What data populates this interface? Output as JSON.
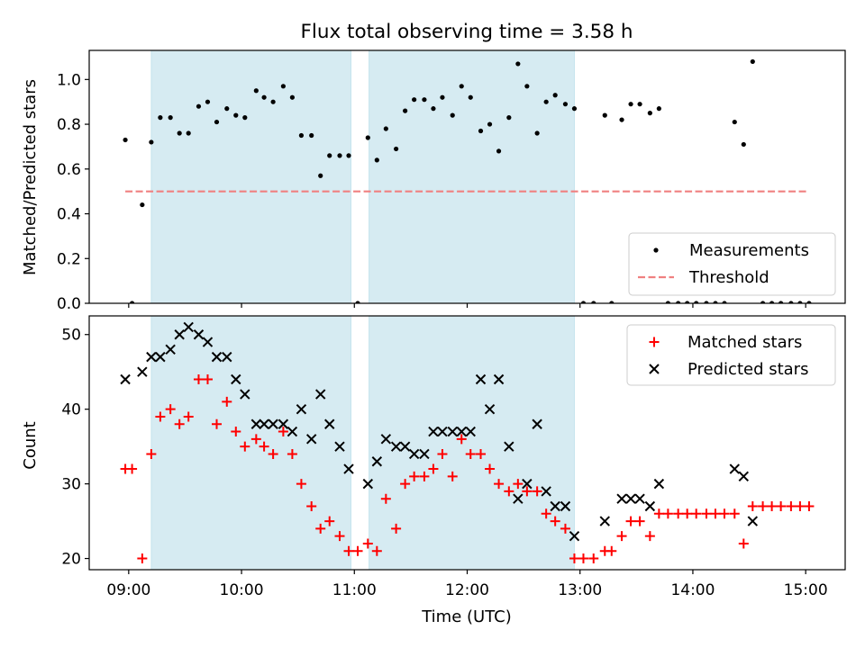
{
  "title": "Flux total observing time = 3.58 h",
  "x_axis": {
    "label": "Time (UTC)",
    "range": [
      8.65,
      15.35
    ],
    "ticks": [
      {
        "value": 9,
        "label": "09:00"
      },
      {
        "value": 10,
        "label": "10:00"
      },
      {
        "value": 11,
        "label": "11:00"
      },
      {
        "value": 12,
        "label": "12:00"
      },
      {
        "value": 13,
        "label": "13:00"
      },
      {
        "value": 14,
        "label": "14:00"
      },
      {
        "value": 15,
        "label": "15:00"
      }
    ]
  },
  "colors": {
    "shade": "#add8e6",
    "threshold": "#f08080",
    "matched": "#ff0000",
    "predicted": "#000000",
    "measurements": "#000000"
  },
  "chart_data": [
    {
      "type": "scatter",
      "title": "Flux total observing time = 3.58 h",
      "ylabel": "Matched/Predicted stars",
      "ylim": [
        0,
        1.13
      ],
      "yticks": [
        {
          "value": 0,
          "label": "0.0"
        },
        {
          "value": 0.2,
          "label": "0.2"
        },
        {
          "value": 0.4,
          "label": "0.4"
        },
        {
          "value": 0.6,
          "label": "0.6"
        },
        {
          "value": 0.8,
          "label": "0.8"
        },
        {
          "value": 1.0,
          "label": "1.0"
        }
      ],
      "shaded_intervals": [
        [
          9.2,
          10.97
        ],
        [
          11.13,
          12.95
        ]
      ],
      "legend": {
        "placement": "lower right",
        "entries": [
          "Measurements",
          "Threshold"
        ]
      },
      "threshold": {
        "name": "Threshold",
        "y": 0.5,
        "x_range": [
          8.97,
          15.02
        ]
      },
      "measurements": {
        "name": "Measurements",
        "points": [
          [
            8.97,
            0.73
          ],
          [
            9.03,
            0.0
          ],
          [
            9.12,
            0.44
          ],
          [
            9.2,
            0.72
          ],
          [
            9.28,
            0.83
          ],
          [
            9.37,
            0.83
          ],
          [
            9.45,
            0.76
          ],
          [
            9.53,
            0.76
          ],
          [
            9.62,
            0.88
          ],
          [
            9.7,
            0.9
          ],
          [
            9.78,
            0.81
          ],
          [
            9.87,
            0.87
          ],
          [
            9.95,
            0.84
          ],
          [
            10.03,
            0.83
          ],
          [
            10.13,
            0.95
          ],
          [
            10.2,
            0.92
          ],
          [
            10.28,
            0.9
          ],
          [
            10.37,
            0.97
          ],
          [
            10.45,
            0.92
          ],
          [
            10.53,
            0.75
          ],
          [
            10.62,
            0.75
          ],
          [
            10.7,
            0.57
          ],
          [
            10.78,
            0.66
          ],
          [
            10.87,
            0.66
          ],
          [
            10.95,
            0.66
          ],
          [
            11.03,
            0.0
          ],
          [
            11.12,
            0.74
          ],
          [
            11.2,
            0.64
          ],
          [
            11.28,
            0.78
          ],
          [
            11.37,
            0.69
          ],
          [
            11.45,
            0.86
          ],
          [
            11.53,
            0.91
          ],
          [
            11.62,
            0.91
          ],
          [
            11.7,
            0.87
          ],
          [
            11.78,
            0.92
          ],
          [
            11.87,
            0.84
          ],
          [
            11.95,
            0.97
          ],
          [
            12.03,
            0.92
          ],
          [
            12.12,
            0.77
          ],
          [
            12.2,
            0.8
          ],
          [
            12.28,
            0.68
          ],
          [
            12.37,
            0.83
          ],
          [
            12.45,
            1.07
          ],
          [
            12.53,
            0.97
          ],
          [
            12.62,
            0.76
          ],
          [
            12.7,
            0.9
          ],
          [
            12.78,
            0.93
          ],
          [
            12.87,
            0.89
          ],
          [
            12.95,
            0.87
          ],
          [
            13.03,
            0.0
          ],
          [
            13.12,
            0.0
          ],
          [
            13.22,
            0.84
          ],
          [
            13.28,
            0.0
          ],
          [
            13.37,
            0.82
          ],
          [
            13.45,
            0.89
          ],
          [
            13.53,
            0.89
          ],
          [
            13.62,
            0.85
          ],
          [
            13.7,
            0.87
          ],
          [
            13.78,
            0.0
          ],
          [
            13.87,
            0.0
          ],
          [
            13.95,
            0.0
          ],
          [
            14.03,
            0.0
          ],
          [
            14.12,
            0.0
          ],
          [
            14.2,
            0.0
          ],
          [
            14.28,
            0.0
          ],
          [
            14.37,
            0.81
          ],
          [
            14.45,
            0.71
          ],
          [
            14.53,
            1.08
          ],
          [
            14.62,
            0.0
          ],
          [
            14.7,
            0.0
          ],
          [
            14.78,
            0.0
          ],
          [
            14.87,
            0.0
          ],
          [
            14.95,
            0.0
          ],
          [
            15.03,
            0.0
          ]
        ]
      }
    },
    {
      "type": "scatter",
      "ylabel": "Count",
      "ylim": [
        18.5,
        52.5
      ],
      "yticks": [
        {
          "value": 20,
          "label": "20"
        },
        {
          "value": 30,
          "label": "30"
        },
        {
          "value": 40,
          "label": "40"
        },
        {
          "value": 50,
          "label": "50"
        }
      ],
      "shaded_intervals": [
        [
          9.2,
          10.97
        ],
        [
          11.13,
          12.95
        ]
      ],
      "legend": {
        "placement": "upper right",
        "entries": [
          "Matched stars",
          "Predicted stars"
        ]
      },
      "series": [
        {
          "name": "Matched stars",
          "marker": "plus",
          "points": [
            [
              8.97,
              32
            ],
            [
              9.03,
              32
            ],
            [
              9.12,
              20
            ],
            [
              9.2,
              34
            ],
            [
              9.28,
              39
            ],
            [
              9.37,
              40
            ],
            [
              9.45,
              38
            ],
            [
              9.53,
              39
            ],
            [
              9.62,
              44
            ],
            [
              9.7,
              44
            ],
            [
              9.78,
              38
            ],
            [
              9.87,
              41
            ],
            [
              9.95,
              37
            ],
            [
              10.03,
              35
            ],
            [
              10.13,
              36
            ],
            [
              10.2,
              35
            ],
            [
              10.28,
              34
            ],
            [
              10.37,
              37
            ],
            [
              10.45,
              34
            ],
            [
              10.53,
              30
            ],
            [
              10.62,
              27
            ],
            [
              10.7,
              24
            ],
            [
              10.78,
              25
            ],
            [
              10.87,
              23
            ],
            [
              10.95,
              21
            ],
            [
              11.03,
              21
            ],
            [
              11.12,
              22
            ],
            [
              11.2,
              21
            ],
            [
              11.28,
              28
            ],
            [
              11.37,
              24
            ],
            [
              11.45,
              30
            ],
            [
              11.53,
              31
            ],
            [
              11.62,
              31
            ],
            [
              11.7,
              32
            ],
            [
              11.78,
              34
            ],
            [
              11.87,
              31
            ],
            [
              11.95,
              36
            ],
            [
              12.03,
              34
            ],
            [
              12.12,
              34
            ],
            [
              12.2,
              32
            ],
            [
              12.28,
              30
            ],
            [
              12.37,
              29
            ],
            [
              12.45,
              30
            ],
            [
              12.53,
              29
            ],
            [
              12.62,
              29
            ],
            [
              12.7,
              26
            ],
            [
              12.78,
              25
            ],
            [
              12.87,
              24
            ],
            [
              12.95,
              20
            ],
            [
              13.03,
              20
            ],
            [
              13.12,
              20
            ],
            [
              13.22,
              21
            ],
            [
              13.28,
              21
            ],
            [
              13.37,
              23
            ],
            [
              13.45,
              25
            ],
            [
              13.53,
              25
            ],
            [
              13.62,
              23
            ],
            [
              13.7,
              26
            ],
            [
              13.78,
              26
            ],
            [
              13.87,
              26
            ],
            [
              13.95,
              26
            ],
            [
              14.03,
              26
            ],
            [
              14.12,
              26
            ],
            [
              14.2,
              26
            ],
            [
              14.28,
              26
            ],
            [
              14.37,
              26
            ],
            [
              14.45,
              22
            ],
            [
              14.53,
              27
            ],
            [
              14.62,
              27
            ],
            [
              14.7,
              27
            ],
            [
              14.78,
              27
            ],
            [
              14.87,
              27
            ],
            [
              14.95,
              27
            ],
            [
              15.03,
              27
            ]
          ]
        },
        {
          "name": "Predicted stars",
          "marker": "x",
          "points": [
            [
              8.97,
              44
            ],
            [
              9.12,
              45
            ],
            [
              9.2,
              47
            ],
            [
              9.28,
              47
            ],
            [
              9.37,
              48
            ],
            [
              9.45,
              50
            ],
            [
              9.53,
              51
            ],
            [
              9.62,
              50
            ],
            [
              9.7,
              49
            ],
            [
              9.78,
              47
            ],
            [
              9.87,
              47
            ],
            [
              9.95,
              44
            ],
            [
              10.03,
              42
            ],
            [
              10.13,
              38
            ],
            [
              10.2,
              38
            ],
            [
              10.28,
              38
            ],
            [
              10.37,
              38
            ],
            [
              10.45,
              37
            ],
            [
              10.53,
              40
            ],
            [
              10.62,
              36
            ],
            [
              10.7,
              42
            ],
            [
              10.78,
              38
            ],
            [
              10.87,
              35
            ],
            [
              10.95,
              32
            ],
            [
              11.12,
              30
            ],
            [
              11.2,
              33
            ],
            [
              11.28,
              36
            ],
            [
              11.37,
              35
            ],
            [
              11.45,
              35
            ],
            [
              11.53,
              34
            ],
            [
              11.62,
              34
            ],
            [
              11.7,
              37
            ],
            [
              11.78,
              37
            ],
            [
              11.87,
              37
            ],
            [
              11.95,
              37
            ],
            [
              12.03,
              37
            ],
            [
              12.12,
              44
            ],
            [
              12.2,
              40
            ],
            [
              12.28,
              44
            ],
            [
              12.37,
              35
            ],
            [
              12.45,
              28
            ],
            [
              12.53,
              30
            ],
            [
              12.62,
              38
            ],
            [
              12.7,
              29
            ],
            [
              12.78,
              27
            ],
            [
              12.87,
              27
            ],
            [
              12.95,
              23
            ],
            [
              13.22,
              25
            ],
            [
              13.37,
              28
            ],
            [
              13.45,
              28
            ],
            [
              13.53,
              28
            ],
            [
              13.62,
              27
            ],
            [
              13.7,
              30
            ],
            [
              14.37,
              32
            ],
            [
              14.45,
              31
            ],
            [
              14.53,
              25
            ]
          ]
        }
      ]
    }
  ]
}
